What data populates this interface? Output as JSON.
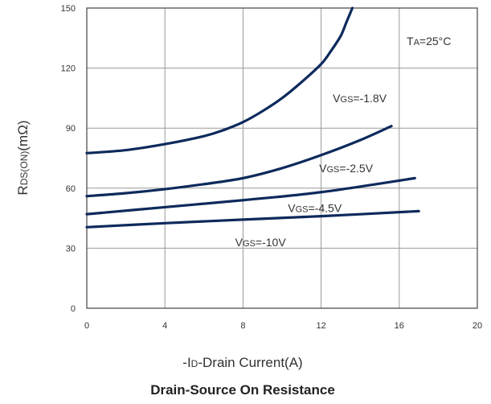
{
  "chart_data": {
    "type": "line",
    "title": "Drain-Source On Resistance",
    "ylabel_main": "R",
    "ylabel_sub": "DS(ON)",
    "ylabel_unit": "(mΩ)",
    "xlabel_prefix": "-I",
    "xlabel_sub": "D",
    "xlabel_rest": "-Drain Current(A)",
    "xlim": [
      0,
      20
    ],
    "ylim": [
      0,
      150
    ],
    "xticks": [
      "0",
      "4",
      "8",
      "12",
      "16",
      "20"
    ],
    "yticks": [
      "0",
      "30",
      "60",
      "90",
      "120",
      "150"
    ],
    "grid": true,
    "annotation": {
      "main": "T",
      "sub": "A",
      "rest": "=25°C"
    },
    "series": [
      {
        "name_main": "V",
        "name_sub": "GS",
        "name_rest": "=-1.8V",
        "x": [
          0,
          2,
          4,
          6,
          7,
          8,
          9,
          10,
          11,
          12,
          12.5,
          13,
          13.3,
          13.6
        ],
        "y": [
          77.5,
          79,
          82,
          86,
          89,
          93,
          98.5,
          105,
          113,
          122,
          128.5,
          136,
          143,
          150
        ]
      },
      {
        "name_main": "V",
        "name_sub": "GS",
        "name_rest": "=-2.5V",
        "x": [
          0,
          2,
          4,
          6,
          8,
          10,
          12,
          14,
          15.6
        ],
        "y": [
          56,
          57.5,
          59.5,
          62,
          65,
          70,
          76.5,
          84,
          91
        ]
      },
      {
        "name_main": "V",
        "name_sub": "GS",
        "name_rest": "=-4.5V",
        "x": [
          0,
          4,
          8,
          12,
          16.8
        ],
        "y": [
          47,
          50.5,
          54,
          58,
          65
        ]
      },
      {
        "name_main": "V",
        "name_sub": "GS",
        "name_rest": "=-10V",
        "x": [
          0,
          4,
          8,
          12,
          17
        ],
        "y": [
          40.5,
          42.5,
          44.3,
          46,
          48.5
        ]
      }
    ],
    "colors": {
      "curve": "#0d2a5c",
      "grid": "#999999",
      "axis": "#444444"
    }
  }
}
